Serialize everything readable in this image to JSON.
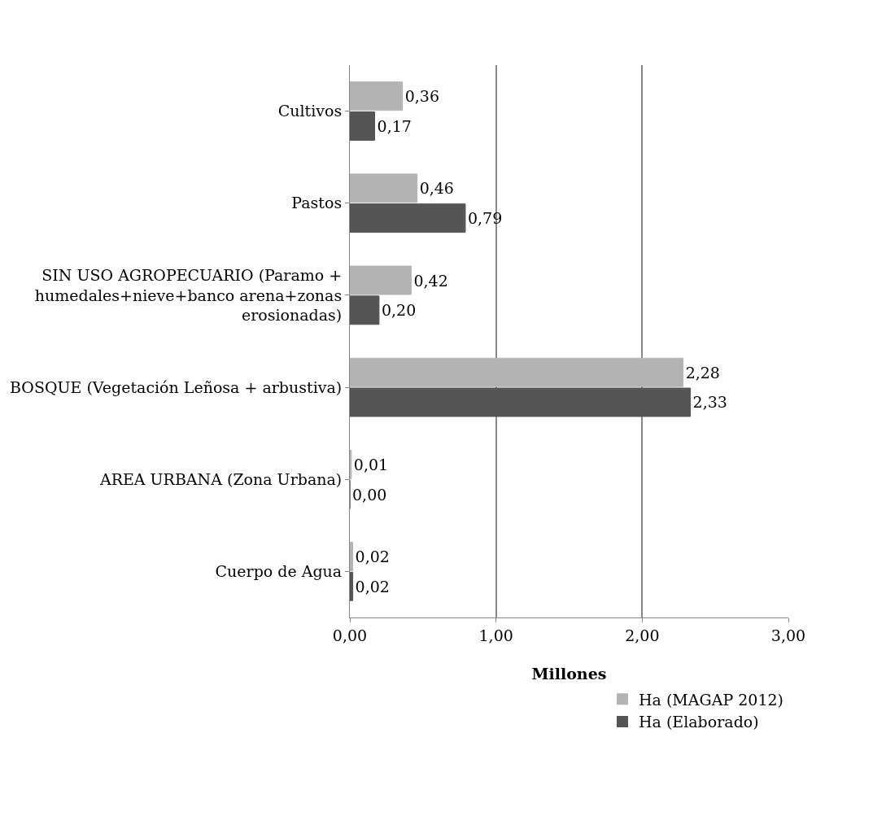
{
  "chart_data": {
    "type": "bar",
    "orientation": "horizontal",
    "xlabel": "Millones",
    "categories": [
      "Cultivos",
      "Pastos",
      "SIN USO AGROPECUARIO (Paramo + humedales+nieve+banco arena+zonas erosionadas)",
      "BOSQUE (Vegetación Leñosa + arbustiva)",
      "AREA URBANA (Zona Urbana)",
      "Cuerpo de Agua"
    ],
    "series": [
      {
        "name": "Ha (MAGAP 2012)",
        "color": "#b3b3b3",
        "values": [
          0.36,
          0.46,
          0.42,
          2.28,
          0.01,
          0.02
        ],
        "value_labels": [
          "0,36",
          "0,46",
          "0,42",
          "2,28",
          "0,01",
          "0,02"
        ]
      },
      {
        "name": "Ha (Elaborado)",
        "color": "#555555",
        "values": [
          0.17,
          0.79,
          0.2,
          2.33,
          0.0,
          0.02
        ],
        "value_labels": [
          "0,17",
          "0,79",
          "0,20",
          "2,33",
          "0,00",
          "0,02"
        ]
      }
    ],
    "xlim": [
      0,
      3
    ],
    "xticks": [
      {
        "value": 0,
        "label": "0,00"
      },
      {
        "value": 1,
        "label": "1,00"
      },
      {
        "value": 2,
        "label": "2,00"
      },
      {
        "value": 3,
        "label": "3,00"
      }
    ],
    "grid": "x",
    "legend": "bottom right"
  }
}
